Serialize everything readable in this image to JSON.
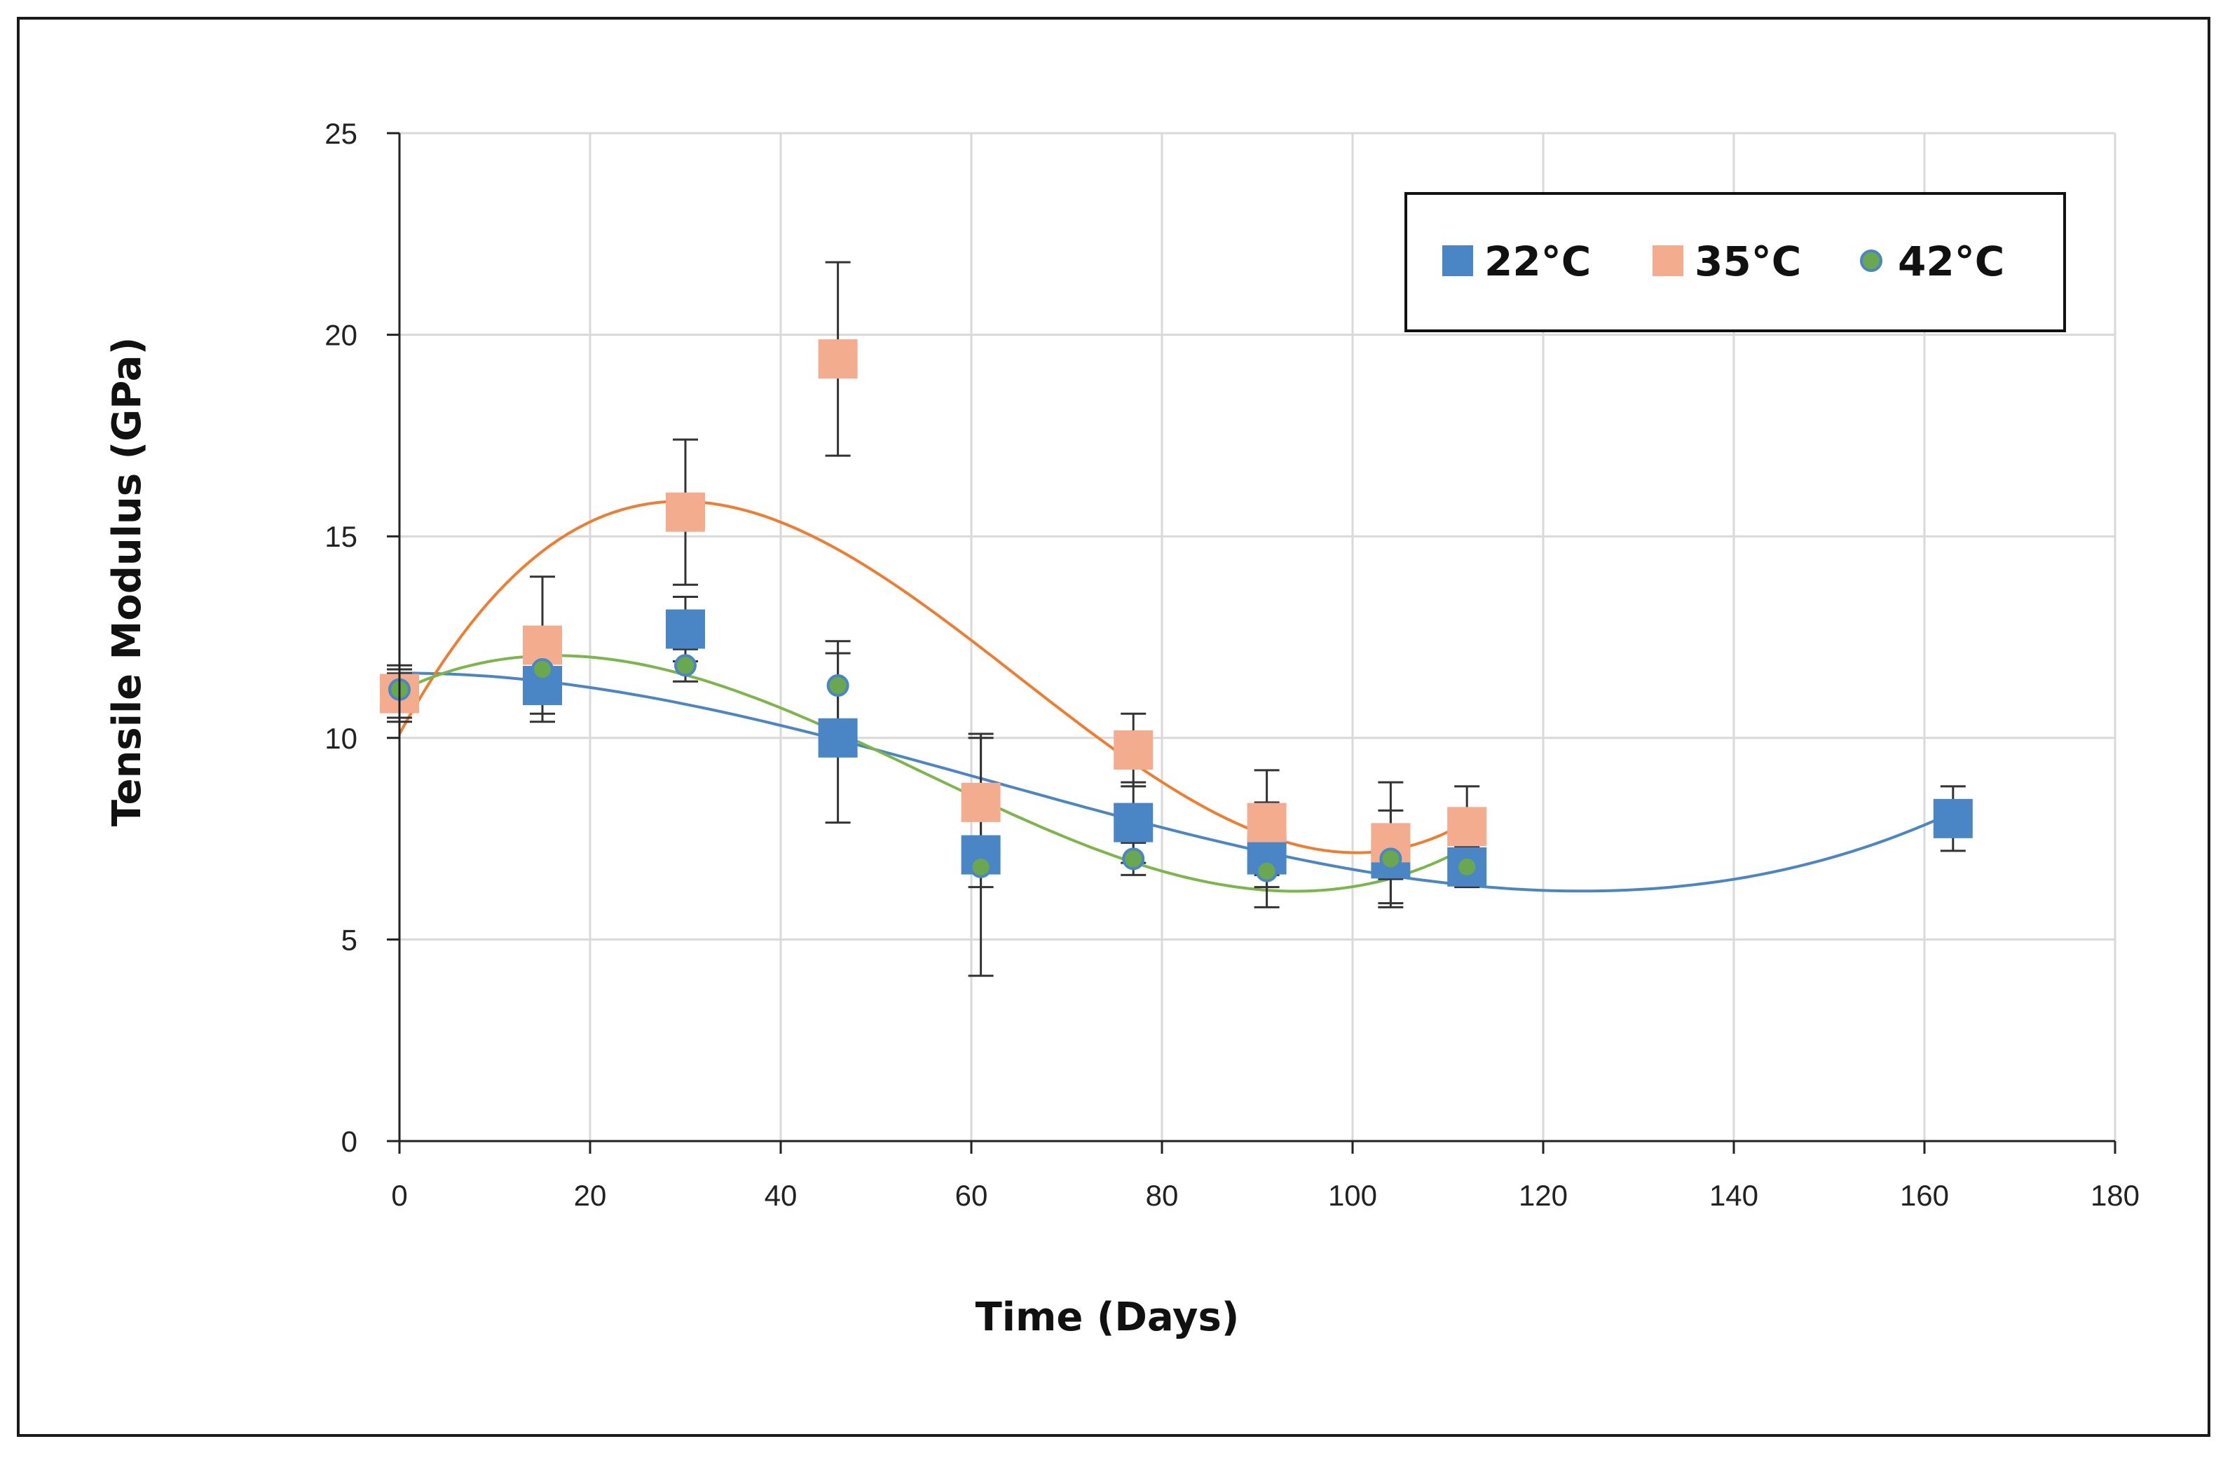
{
  "chart_data": {
    "type": "scatter",
    "xlabel": "Time (Days)",
    "ylabel": "Tensile Modulus (GPa)",
    "xlim": [
      0,
      180
    ],
    "ylim": [
      0,
      25
    ],
    "xticks": [
      0,
      20,
      40,
      60,
      80,
      100,
      120,
      140,
      160,
      180
    ],
    "yticks": [
      0,
      5,
      10,
      15,
      20,
      25
    ],
    "grid": true,
    "legend_position": "top-right",
    "trendline": "polynomial",
    "series": [
      {
        "name": "22°C",
        "marker": "square",
        "color": "#4a86c5",
        "x": [
          0,
          15,
          30,
          46,
          61,
          77,
          91,
          104,
          112,
          163
        ],
        "y": [
          11.1,
          11.3,
          12.7,
          10.0,
          7.1,
          7.9,
          7.1,
          7.0,
          6.8,
          8.0
        ],
        "error": [
          0.7,
          0.9,
          0.8,
          2.1,
          3.0,
          1.0,
          1.3,
          1.2,
          0.5,
          0.8
        ]
      },
      {
        "name": "35°C",
        "marker": "square",
        "color": "#f4ac8f",
        "x": [
          0,
          15,
          30,
          46,
          61,
          77,
          91,
          104,
          112
        ],
        "y": [
          11.1,
          12.3,
          15.6,
          19.4,
          8.4,
          9.7,
          7.9,
          7.4,
          7.8
        ],
        "error": [
          0.6,
          1.7,
          1.8,
          2.4,
          1.6,
          0.9,
          1.3,
          1.5,
          1.0
        ],
        "trend_color": "#f07d2f"
      },
      {
        "name": "42°C",
        "marker": "circle",
        "color": "#6aa84f",
        "x": [
          0,
          15,
          30,
          46,
          61,
          77,
          91,
          104,
          112
        ],
        "y": [
          11.2,
          11.7,
          11.8,
          11.3,
          6.8,
          7.0,
          6.7,
          7.0,
          6.8
        ],
        "error": [
          0.4,
          0.5,
          0.4,
          1.1,
          0.5,
          0.4,
          0.4,
          0.5,
          0.3
        ],
        "trend_color": "#7ab648"
      }
    ]
  }
}
